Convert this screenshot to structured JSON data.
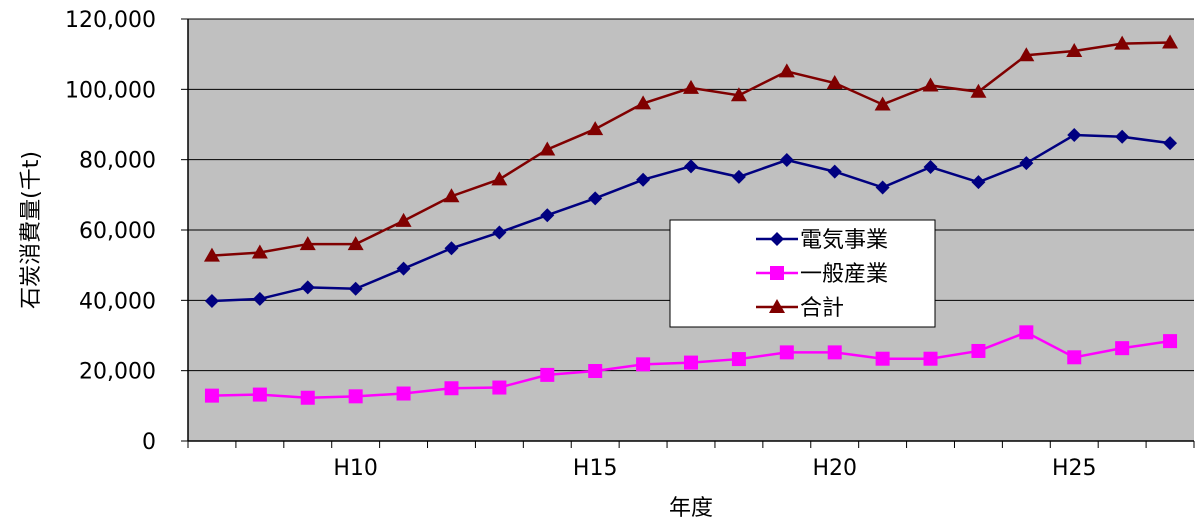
{
  "chart_data": {
    "type": "line",
    "xlabel": "年度",
    "ylabel": "石炭消費量(千t)",
    "ylim": [
      0,
      120000
    ],
    "y_ticks": [
      "0",
      "20,000",
      "40,000",
      "60,000",
      "80,000",
      "100,000",
      "120,000"
    ],
    "x_tick_labels": [
      {
        "index": 3,
        "label": "H10"
      },
      {
        "index": 8,
        "label": "H15"
      },
      {
        "index": 13,
        "label": "H20"
      },
      {
        "index": 18,
        "label": "H25"
      }
    ],
    "x_count": 21,
    "grid": "horizontal",
    "plot_background": "#c0c0c0",
    "legend_position": "center-right",
    "series": [
      {
        "name": "電気事業",
        "color": "#000080",
        "marker": "diamond",
        "values": [
          39800,
          40400,
          43700,
          43300,
          49000,
          54800,
          59300,
          64200,
          69000,
          74300,
          78100,
          75100,
          79900,
          76600,
          72100,
          77900,
          73600,
          79000,
          87000,
          86500,
          84700
        ]
      },
      {
        "name": "一般産業",
        "color": "#ff00ff",
        "marker": "square",
        "values": [
          12900,
          13200,
          12300,
          12700,
          13500,
          15000,
          15200,
          18800,
          19900,
          21800,
          22300,
          23300,
          25200,
          25200,
          23400,
          23400,
          25600,
          30900,
          23800,
          26400,
          28400
        ]
      },
      {
        "name": "合計",
        "color": "#800000",
        "marker": "triangle",
        "values": [
          52700,
          53600,
          56000,
          56000,
          62600,
          69600,
          74400,
          82900,
          88700,
          96000,
          100400,
          98300,
          105100,
          101800,
          95700,
          101100,
          99300,
          109700,
          110900,
          113000,
          113300
        ]
      }
    ]
  }
}
